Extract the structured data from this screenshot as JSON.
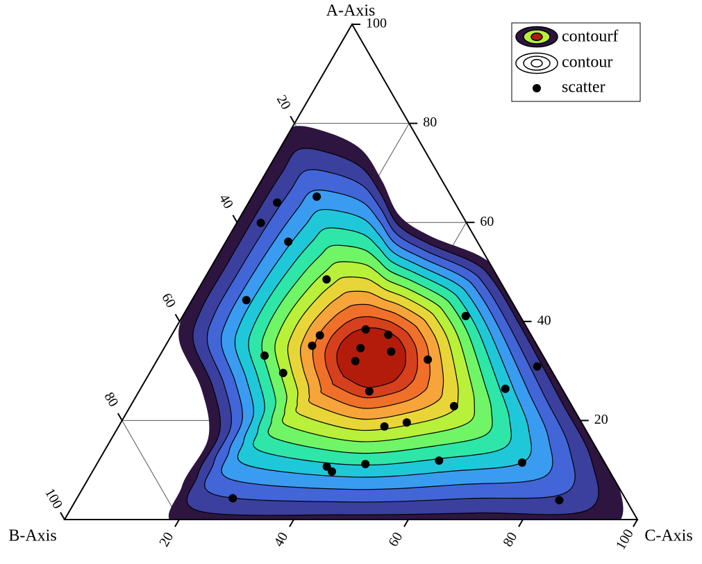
{
  "chart_data": {
    "type": "ternary",
    "axes": {
      "a": {
        "label": "A-Axis",
        "ticks": [
          20,
          40,
          60,
          80,
          100
        ]
      },
      "b": {
        "label": "B-Axis",
        "ticks": [
          20,
          40,
          60,
          80,
          100
        ]
      },
      "c": {
        "label": "C-Axis",
        "ticks": [
          20,
          40,
          60,
          80,
          100
        ]
      }
    },
    "grid": true,
    "legend": "upper right",
    "contourf": {
      "name": "contourf",
      "colors": [
        "#2d1540",
        "#3b3f9e",
        "#4266d8",
        "#3a9cf0",
        "#1fc8d8",
        "#2ee6a8",
        "#6ff566",
        "#b8f03a",
        "#e8d638",
        "#f7a43a",
        "#f0702a",
        "#d6401c",
        "#b31c0a"
      ]
    },
    "contour": {
      "name": "contour",
      "color": "#000000"
    },
    "scatter": {
      "name": "scatter",
      "color": "#000000",
      "a": [
        65.2,
        64.0,
        59.9,
        56.1,
        48.5,
        44.3,
        41.1,
        38.4,
        37.2,
        37.3,
        35.1,
        34.6,
        33.9,
        33.1,
        32.0,
        32.3,
        30.9,
        29.6,
        25.9,
        26.4,
        22.9,
        19.6,
        18.8,
        11.9,
        11.2,
        10.7,
        9.7,
        11.5,
        4.3,
        3.9
      ],
      "b": [
        23.5,
        31.0,
        35.9,
        33.0,
        30.1,
        46.2,
        9.5,
        28.3,
        36.9,
        24.9,
        39.3,
        31.1,
        26.1,
        48.6,
        33.3,
        20.5,
        2.1,
        47.1,
        33.9,
        9.9,
        20.6,
        30.5,
        34.8,
        28.7,
        41.9,
        48.9,
        48.5,
        14.4,
        68.5,
        11.7
      ],
      "c": [
        11.3,
        5.0,
        4.2,
        10.9,
        21.4,
        9.5,
        49.4,
        33.3,
        25.9,
        37.8,
        25.6,
        34.3,
        40.0,
        18.3,
        34.7,
        47.2,
        67.0,
        23.3,
        40.2,
        63.7,
        56.5,
        49.9,
        46.4,
        59.4,
        46.9,
        40.4,
        41.8,
        74.1,
        27.2,
        84.4
      ]
    }
  }
}
